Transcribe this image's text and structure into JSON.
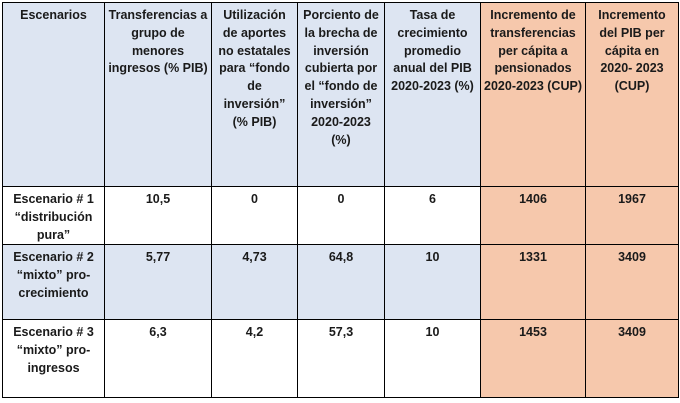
{
  "table": {
    "headers": [
      "Escenarios",
      "Transferencias a grupo de menores ingresos (% PIB)",
      "Utilización de aportes no estatales para “fondo de inversión” (% PIB)",
      "Porciento de la brecha de inversión cubierta por el “fondo de inversión” 2020-2023 (%)",
      "Tasa de crecimiento promedio anual del PIB 2020-2023 (%)",
      "Incremento de transferencias per cápita a pensionados 2020-2023 (CUP)",
      "Incremento del PIB per cápita en 2020- 2023 (CUP)"
    ],
    "rows": [
      {
        "scenario": "Escenario # 1 “distribución pura”",
        "values": [
          "10,5",
          "0",
          "0",
          "6",
          "1406",
          "1967"
        ]
      },
      {
        "scenario": "Escenario # 2 “mixto” pro-crecimiento",
        "values": [
          "5,77",
          "4,73",
          "64,8",
          "10",
          "1331",
          "3409"
        ]
      },
      {
        "scenario": "Escenario # 3 “mixto” pro-ingresos",
        "values": [
          "6,3",
          "4,2",
          "57,3",
          "10",
          "1453",
          "3409"
        ]
      }
    ],
    "colors": {
      "header_blue": "#dde5f2",
      "highlight_peach": "#f6c8ac"
    }
  }
}
